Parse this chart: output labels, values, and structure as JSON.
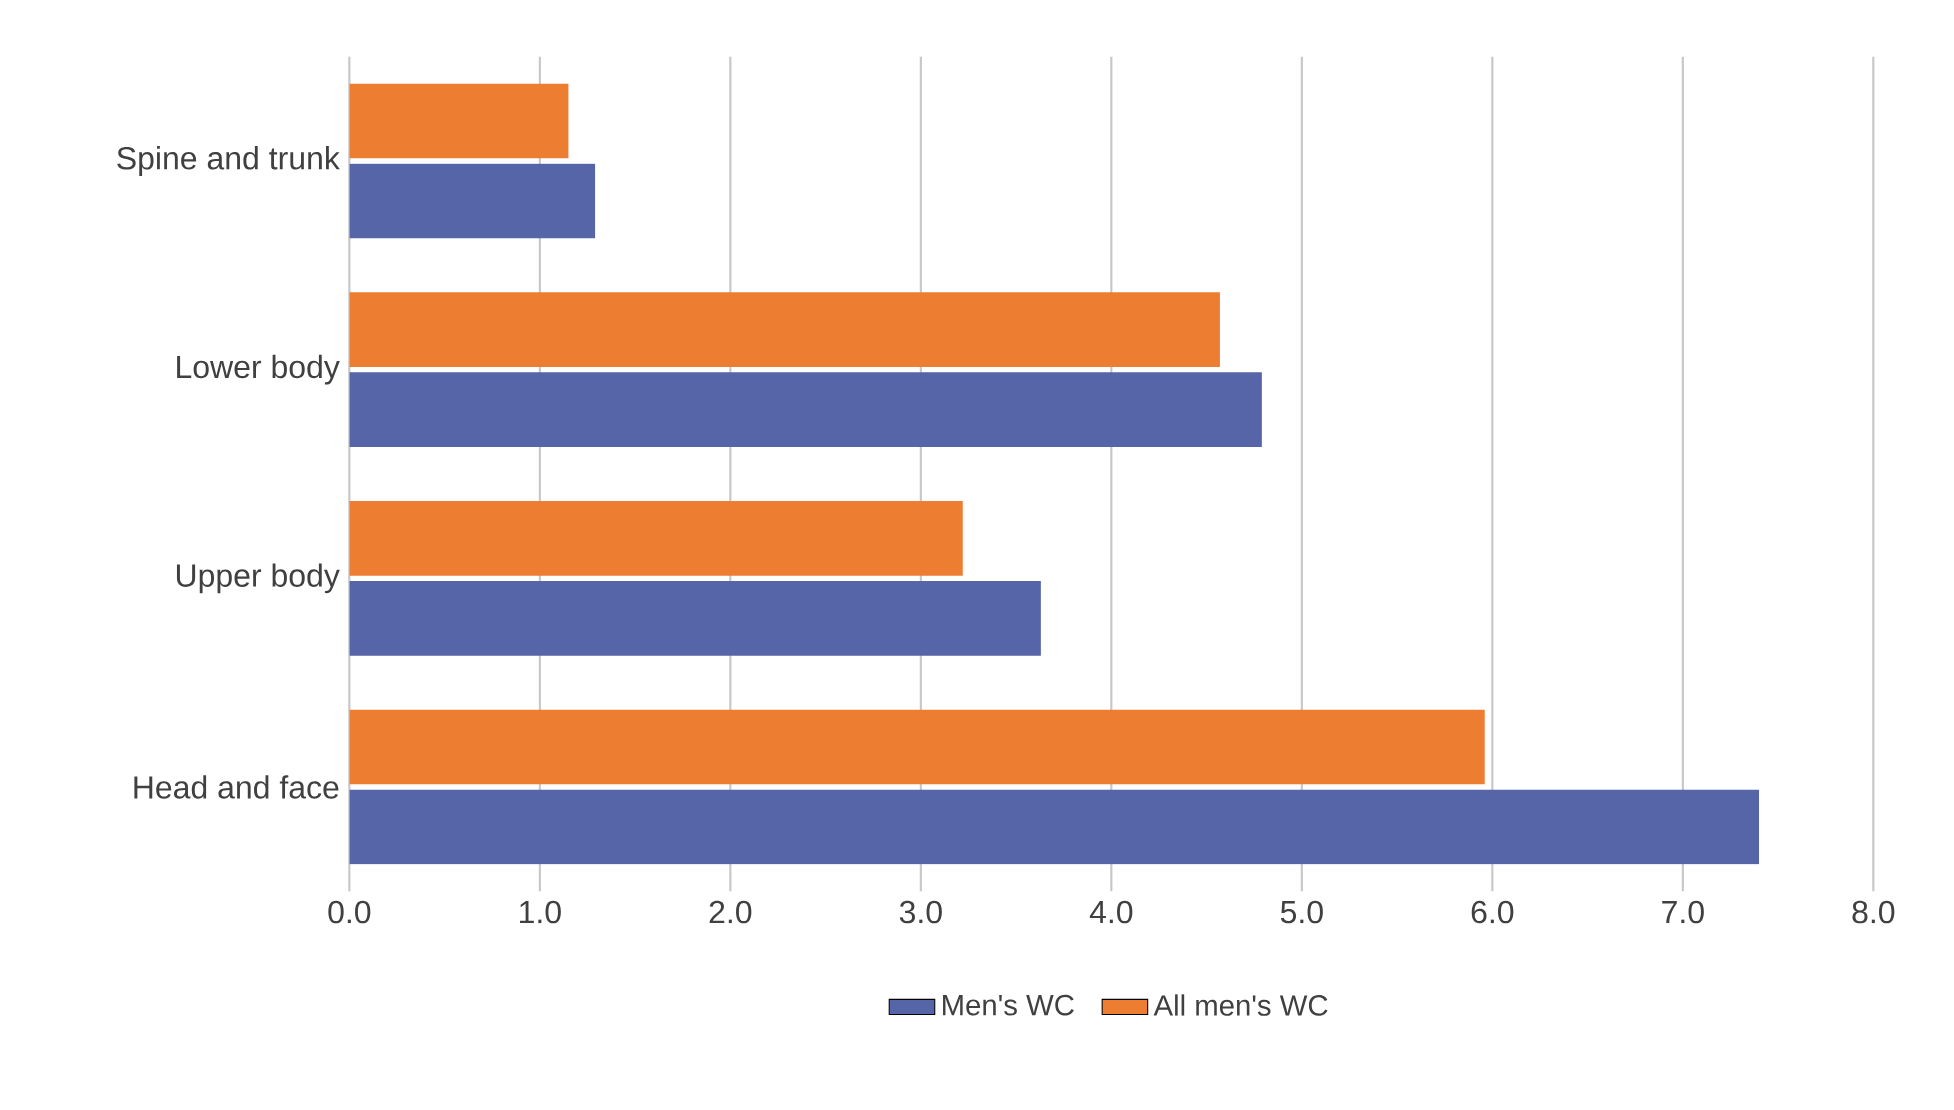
{
  "chart_data": {
    "type": "bar",
    "orientation": "horizontal",
    "categories": [
      "Spine and trunk",
      "Lower body",
      "Upper body",
      "Head and face"
    ],
    "series": [
      {
        "name": "Men's WC",
        "color": "#5565a8",
        "values": [
          1.29,
          4.79,
          3.63,
          7.4
        ]
      },
      {
        "name": "All men's WC",
        "color": "#ed7d31",
        "values": [
          1.15,
          4.57,
          3.22,
          5.96
        ]
      }
    ],
    "xlim": [
      0,
      8
    ],
    "xticks": [
      {
        "value": 0,
        "label": "0.0"
      },
      {
        "value": 1,
        "label": "1.0"
      },
      {
        "value": 2,
        "label": "2.0"
      },
      {
        "value": 3,
        "label": "3.0"
      },
      {
        "value": 4,
        "label": "4.0"
      },
      {
        "value": 5,
        "label": "5.0"
      },
      {
        "value": 6,
        "label": "6.0"
      },
      {
        "value": 7,
        "label": "7.0"
      },
      {
        "value": 8,
        "label": "8.0"
      }
    ],
    "grid": "x",
    "legend": "bottom"
  }
}
